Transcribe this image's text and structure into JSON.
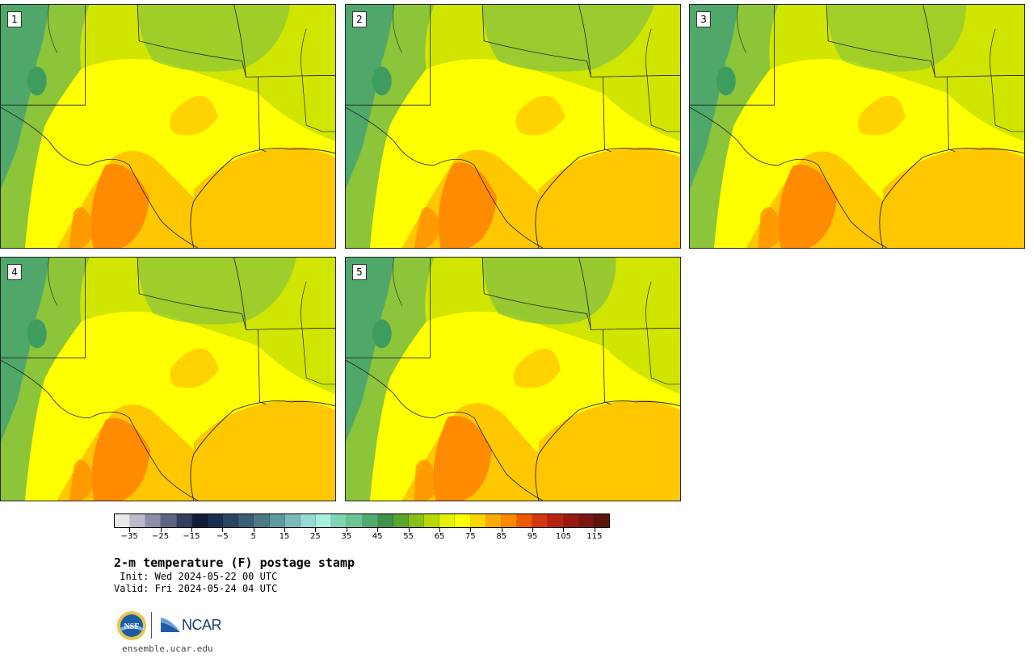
{
  "stamps": [
    {
      "label": "1"
    },
    {
      "label": "2"
    },
    {
      "label": "3"
    },
    {
      "label": "4"
    },
    {
      "label": "5"
    }
  ],
  "colorbar": {
    "colors": [
      "#e7e8ee",
      "#b9bbcb",
      "#8c90a6",
      "#5e6582",
      "#343f5f",
      "#111c36",
      "#1c2e4e",
      "#2a4562",
      "#3a5e74",
      "#4b7987",
      "#5f9a9f",
      "#7bbcba",
      "#95dbd2",
      "#a8efe0",
      "#7fd6b3",
      "#6ac495",
      "#52ac70",
      "#3e9349",
      "#5aa52e",
      "#8abf17",
      "#bad800",
      "#e4f200",
      "#ffff00",
      "#ffd400",
      "#ffaa00",
      "#ff8a00",
      "#ee5a05",
      "#d2380d",
      "#b52410",
      "#951a10",
      "#771710",
      "#5a1608"
    ],
    "tick_labels": [
      "−35",
      "−25",
      "−15",
      "−5",
      "5",
      "15",
      "25",
      "35",
      "45",
      "55",
      "65",
      "75",
      "85",
      "95",
      "105",
      "115"
    ],
    "min": -40,
    "max": 120,
    "step": 5
  },
  "title": "2-m temperature (F) postage stamp",
  "init": " Init: Wed 2024-05-22 00 UTC",
  "valid": "Valid: Fri 2024-05-24 04 UTC",
  "logos": {
    "nsf": "NSF",
    "ncar": "NCAR"
  },
  "url": "ensemble.ucar.edu",
  "map_colors": {
    "hot": "#ff8c00",
    "warm": "#ffc700",
    "mild": "#ffff00",
    "cool": "#c8e000",
    "green": "#8cc43a",
    "mountain": "#4fa86a"
  }
}
